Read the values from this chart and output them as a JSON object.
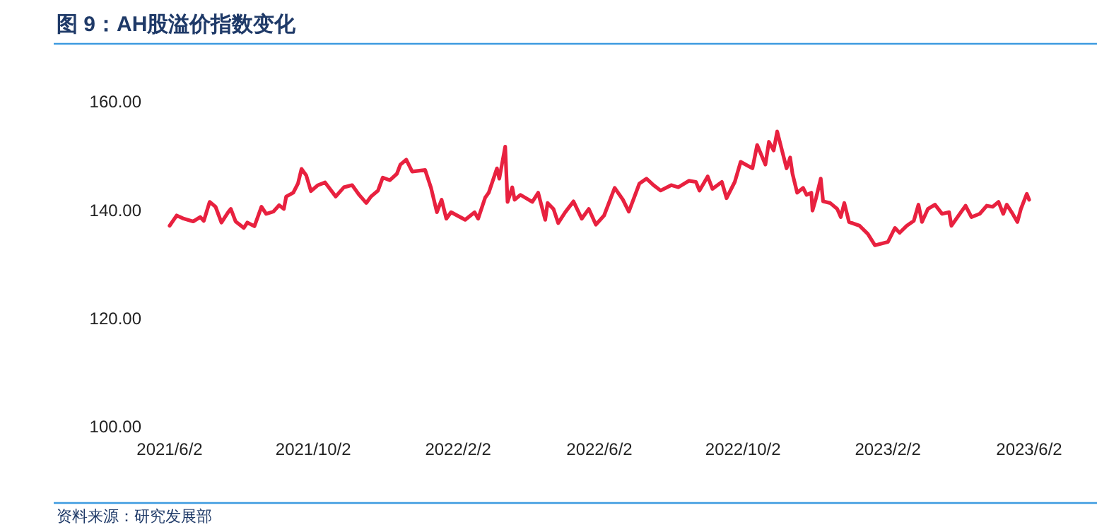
{
  "chart_data": {
    "type": "line",
    "title": "图 9：AH股溢价指数变化",
    "annotations": [
      "资料来源：研究发展部"
    ],
    "xlim": [
      "2021-06-02",
      "2023-06-02"
    ],
    "xticks": [
      {
        "value": "2021-06-02",
        "label": "2021/6/2"
      },
      {
        "value": "2021-10-02",
        "label": "2021/10/2"
      },
      {
        "value": "2022-02-02",
        "label": "2022/2/2"
      },
      {
        "value": "2022-06-02",
        "label": "2022/6/2"
      },
      {
        "value": "2022-10-02",
        "label": "2022/10/2"
      },
      {
        "value": "2023-02-02",
        "label": "2023/2/2"
      },
      {
        "value": "2023-06-02",
        "label": "2023/6/2"
      }
    ],
    "ylim": [
      100,
      160
    ],
    "yticks": [
      {
        "value": 100,
        "label": "100.00"
      },
      {
        "value": 120,
        "label": "120.00"
      },
      {
        "value": 140,
        "label": "140.00"
      },
      {
        "value": 160,
        "label": "160.00"
      }
    ],
    "grid": false,
    "marker": "none",
    "line_style": "solid",
    "x": [
      "2021-06-02",
      "2021-06-08",
      "2021-06-14",
      "2021-06-22",
      "2021-06-28",
      "2021-07-01",
      "2021-07-06",
      "2021-07-11",
      "2021-07-16",
      "2021-07-22",
      "2021-07-24",
      "2021-07-28",
      "2021-08-04",
      "2021-08-07",
      "2021-08-13",
      "2021-08-19",
      "2021-08-23",
      "2021-08-29",
      "2021-09-03",
      "2021-09-07",
      "2021-09-09",
      "2021-09-15",
      "2021-09-19",
      "2021-09-22",
      "2021-09-26",
      "2021-09-30",
      "2021-10-06",
      "2021-10-12",
      "2021-10-21",
      "2021-10-28",
      "2021-11-04",
      "2021-11-10",
      "2021-11-16",
      "2021-11-20",
      "2021-11-26",
      "2021-11-30",
      "2021-12-06",
      "2021-12-12",
      "2021-12-15",
      "2021-12-20",
      "2021-12-25",
      "2022-01-05",
      "2022-01-10",
      "2022-01-15",
      "2022-01-19",
      "2022-01-23",
      "2022-01-27",
      "2022-02-08",
      "2022-02-16",
      "2022-02-19",
      "2022-02-25",
      "2022-02-28",
      "2022-03-07",
      "2022-03-09",
      "2022-03-14",
      "2022-03-16",
      "2022-03-20",
      "2022-03-22",
      "2022-03-27",
      "2022-04-06",
      "2022-04-11",
      "2022-04-17",
      "2022-04-19",
      "2022-04-24",
      "2022-04-28",
      "2022-05-04",
      "2022-05-11",
      "2022-05-18",
      "2022-05-24",
      "2022-05-30",
      "2022-06-06",
      "2022-06-15",
      "2022-06-22",
      "2022-06-27",
      "2022-07-06",
      "2022-07-12",
      "2022-07-18",
      "2022-07-24",
      "2022-08-02",
      "2022-08-08",
      "2022-08-17",
      "2022-08-23",
      "2022-08-26",
      "2022-09-02",
      "2022-09-06",
      "2022-09-14",
      "2022-09-18",
      "2022-09-25",
      "2022-09-30",
      "2022-10-10",
      "2022-10-14",
      "2022-10-21",
      "2022-10-24",
      "2022-10-28",
      "2022-10-31",
      "2022-11-08",
      "2022-11-11",
      "2022-11-13",
      "2022-11-17",
      "2022-11-22",
      "2022-11-25",
      "2022-11-29",
      "2022-11-30",
      "2022-12-03",
      "2022-12-07",
      "2022-12-09",
      "2022-12-15",
      "2022-12-21",
      "2022-12-24",
      "2022-12-27",
      "2022-12-31",
      "2023-01-09",
      "2023-01-16",
      "2023-01-22",
      "2023-02-02",
      "2023-02-08",
      "2023-02-12",
      "2023-02-18",
      "2023-02-24",
      "2023-02-28",
      "2023-03-03",
      "2023-03-08",
      "2023-03-14",
      "2023-03-20",
      "2023-03-26",
      "2023-03-28",
      "2023-04-05",
      "2023-04-09",
      "2023-04-14",
      "2023-04-21",
      "2023-04-27",
      "2023-05-02",
      "2023-05-07",
      "2023-05-11",
      "2023-05-14",
      "2023-05-19",
      "2023-05-23",
      "2023-05-26",
      "2023-05-31",
      "2023-06-02"
    ],
    "series": [
      {
        "color": "#e8213f",
        "values": [
          137.1,
          139.0,
          138.4,
          137.9,
          138.7,
          138.0,
          141.5,
          140.6,
          137.7,
          139.7,
          140.2,
          137.9,
          136.7,
          137.7,
          137.0,
          140.6,
          139.3,
          139.7,
          140.9,
          140.2,
          142.5,
          143.2,
          144.9,
          147.6,
          146.4,
          143.5,
          144.6,
          145.1,
          142.5,
          144.2,
          144.6,
          142.8,
          141.3,
          142.5,
          143.6,
          146.0,
          145.5,
          146.7,
          148.4,
          149.3,
          147.1,
          147.4,
          144.1,
          139.6,
          141.9,
          138.4,
          139.6,
          138.2,
          139.6,
          138.4,
          142.3,
          143.2,
          147.7,
          145.8,
          151.7,
          141.5,
          144.2,
          141.9,
          142.8,
          141.5,
          143.2,
          138.2,
          141.3,
          140.2,
          137.6,
          139.6,
          141.6,
          138.4,
          140.2,
          137.3,
          139.0,
          144.1,
          141.9,
          139.7,
          144.9,
          145.8,
          144.6,
          143.6,
          144.6,
          144.2,
          145.4,
          145.2,
          143.6,
          146.2,
          143.9,
          145.2,
          142.2,
          145.2,
          148.9,
          147.7,
          152.0,
          148.4,
          152.6,
          151.0,
          154.5,
          147.7,
          149.7,
          146.7,
          143.2,
          144.1,
          142.8,
          143.2,
          139.9,
          142.2,
          145.8,
          141.6,
          141.3,
          140.2,
          138.7,
          141.3,
          137.8,
          137.1,
          135.6,
          133.5,
          134.1,
          136.7,
          135.8,
          137.1,
          138.0,
          141.0,
          137.8,
          140.2,
          141.0,
          139.3,
          139.6,
          137.1,
          139.6,
          140.8,
          138.7,
          139.3,
          140.8,
          140.6,
          141.5,
          139.3,
          141.0,
          139.3,
          137.8,
          140.2,
          143.0,
          141.9
        ]
      }
    ]
  }
}
